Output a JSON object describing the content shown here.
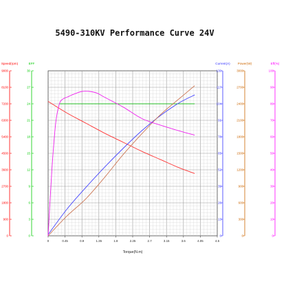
{
  "chart_data": {
    "type": "line",
    "title": "5490-310KV Performance Curve 24V",
    "xlabel": "Torque(N.m)",
    "xlim": [
      0,
      4.5
    ],
    "x_ticks": [
      "0",
      "0.45",
      "0.9",
      "1.35",
      "1.8",
      "2.25",
      "2.7",
      "3.15",
      "3.6",
      "4.05",
      "4.5"
    ],
    "grid": true,
    "axes": [
      {
        "id": "speed",
        "label": "Speed(rpm)",
        "color": "#ff0000",
        "range": [
          0,
          9000
        ],
        "ticks": [
          "0",
          "900",
          "1800",
          "2700",
          "3600",
          "4500",
          "5400",
          "6300",
          "7200",
          "8100",
          "9000"
        ]
      },
      {
        "id": "eff",
        "label": "EFF",
        "color": "#00cc00",
        "range": [
          0,
          30
        ],
        "ticks": [
          "0",
          "3",
          "6",
          "9",
          "12",
          "15",
          "18",
          "21",
          "24",
          "27",
          "30"
        ]
      },
      {
        "id": "current",
        "label": "Current(A)",
        "color": "#3333ff",
        "range": [
          0,
          130
        ],
        "ticks": [
          "0",
          "13",
          "26",
          "39",
          "52",
          "65",
          "78",
          "91",
          "104",
          "117",
          "130"
        ]
      },
      {
        "id": "power",
        "label": "Power(W)",
        "color": "#cc6600",
        "range": [
          0,
          3000
        ],
        "ticks": [
          "0",
          "300",
          "600",
          "900",
          "1200",
          "1500",
          "1800",
          "2100",
          "2400",
          "2700",
          "3000"
        ]
      },
      {
        "id": "effpct",
        "label": "Eff(%)",
        "color": "#ff00ff",
        "range": [
          0,
          100
        ],
        "ticks": [
          "0",
          "10",
          "20",
          "30",
          "40",
          "50",
          "60",
          "70",
          "80",
          "90",
          "100"
        ]
      }
    ],
    "series": [
      {
        "axis": "speed",
        "color": "#ff3333",
        "x": [
          0,
          0.5,
          1.0,
          1.5,
          2.0,
          2.5,
          3.0,
          3.5,
          3.9
        ],
        "y": [
          7330,
          6700,
          6150,
          5600,
          5100,
          4600,
          4150,
          3700,
          3400
        ]
      },
      {
        "axis": "eff",
        "color": "#22bb22",
        "x": [
          0.3,
          3.9
        ],
        "y": [
          24,
          24
        ]
      },
      {
        "axis": "current",
        "color": "#4444ff",
        "x": [
          0,
          0.5,
          1.0,
          1.5,
          2.0,
          2.5,
          3.0,
          3.5,
          3.9
        ],
        "y": [
          1,
          21,
          38,
          54,
          69,
          83,
          95,
          105,
          111
        ]
      },
      {
        "axis": "power",
        "color": "#cc7755",
        "x": [
          0,
          0.5,
          1.0,
          1.5,
          2.0,
          2.5,
          3.0,
          3.5,
          3.9
        ],
        "y": [
          0,
          360,
          670,
          1060,
          1480,
          1860,
          2210,
          2500,
          2730
        ]
      },
      {
        "axis": "effpct",
        "color": "#ee22ee",
        "x": [
          0,
          0.1,
          0.2,
          0.3,
          0.4,
          0.5,
          0.7,
          0.9,
          1.1,
          1.3,
          1.5,
          2.0,
          2.5,
          3.0,
          3.5,
          3.9
        ],
        "y": [
          0,
          40,
          68,
          80,
          83,
          84,
          86,
          87.5,
          87.5,
          86.5,
          84,
          78,
          71,
          67,
          63.5,
          61
        ]
      }
    ]
  }
}
